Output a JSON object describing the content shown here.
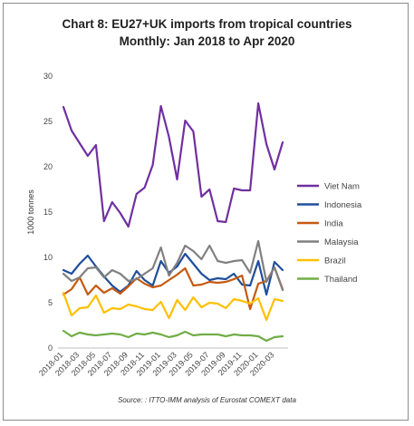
{
  "chart_data": {
    "type": "line",
    "title": "Chart 8: EU27+UK imports from tropical countries",
    "subtitle": "Monthly: Jan 2018 to Apr 2020",
    "ylabel": "1000 tonnes",
    "ylim": [
      0,
      30
    ],
    "yticks": [
      0,
      5,
      10,
      15,
      20,
      25,
      30
    ],
    "grid": false,
    "legend_position": "right",
    "x": [
      "2018-01",
      "2018-02",
      "2018-03",
      "2018-04",
      "2018-05",
      "2018-06",
      "2018-07",
      "2018-08",
      "2018-09",
      "2018-10",
      "2018-11",
      "2018-12",
      "2019-01",
      "2019-02",
      "2019-03",
      "2019-04",
      "2019-05",
      "2019-06",
      "2019-07",
      "2019-08",
      "2019-09",
      "2019-10",
      "2019-11",
      "2019-12",
      "2020-01",
      "2020-02",
      "2020-03",
      "2020-04"
    ],
    "xticks": [
      "2018-01",
      "2018-03",
      "2018-05",
      "2018-07",
      "2018-09",
      "2018-11",
      "2019-01",
      "2019-03",
      "2019-05",
      "2019-07",
      "2019-09",
      "2019-11",
      "2020-01",
      "2020-03"
    ],
    "series": [
      {
        "name": "Viet Nam",
        "color": "#7030a0",
        "values": [
          26.6,
          24.0,
          22.6,
          21.2,
          22.4,
          14.0,
          16.1,
          14.9,
          13.4,
          17.0,
          17.7,
          20.2,
          26.7,
          23.3,
          18.6,
          25.1,
          23.9,
          16.7,
          17.5,
          14.0,
          13.9,
          17.6,
          17.4,
          17.4,
          27.0,
          22.5,
          19.7,
          22.7
        ]
      },
      {
        "name": "Indonesia",
        "color": "#1f4e9a",
        "values": [
          8.6,
          8.2,
          9.3,
          10.2,
          9.0,
          7.9,
          6.9,
          6.2,
          6.9,
          8.5,
          7.5,
          6.9,
          9.6,
          8.3,
          9.0,
          10.4,
          9.3,
          8.2,
          7.5,
          7.7,
          7.6,
          8.2,
          7.0,
          6.9,
          9.6,
          5.9,
          9.5,
          8.6
        ]
      },
      {
        "name": "India",
        "color": "#c55a11",
        "values": [
          5.9,
          6.5,
          7.8,
          5.9,
          6.9,
          6.1,
          6.6,
          6.0,
          6.8,
          7.7,
          7.1,
          6.7,
          6.9,
          7.5,
          8.1,
          8.8,
          6.9,
          7.0,
          7.3,
          7.2,
          7.3,
          7.6,
          8.0,
          4.3,
          7.1,
          7.4,
          8.9,
          6.5
        ]
      },
      {
        "name": "Malaysia",
        "color": "#808080",
        "values": [
          8.2,
          7.4,
          7.8,
          8.8,
          8.9,
          7.8,
          8.6,
          8.2,
          7.4,
          7.6,
          8.2,
          8.8,
          11.1,
          8.0,
          9.4,
          11.3,
          10.7,
          9.8,
          11.3,
          9.6,
          9.4,
          9.6,
          9.7,
          8.3,
          11.8,
          7.3,
          8.9,
          6.4
        ]
      },
      {
        "name": "Brazil",
        "color": "#ffc000",
        "values": [
          6.1,
          3.6,
          4.4,
          4.5,
          5.8,
          3.9,
          4.4,
          4.3,
          4.8,
          4.6,
          4.3,
          4.2,
          5.1,
          3.3,
          5.3,
          4.2,
          5.6,
          4.5,
          5.0,
          4.9,
          4.4,
          5.4,
          5.2,
          4.9,
          5.5,
          3.1,
          5.4,
          5.2
        ]
      },
      {
        "name": "Thailand",
        "color": "#70ad47",
        "values": [
          1.9,
          1.3,
          1.7,
          1.5,
          1.4,
          1.5,
          1.6,
          1.5,
          1.2,
          1.6,
          1.5,
          1.7,
          1.5,
          1.2,
          1.4,
          1.8,
          1.4,
          1.5,
          1.5,
          1.5,
          1.3,
          1.5,
          1.4,
          1.4,
          1.3,
          0.8,
          1.2,
          1.3
        ]
      }
    ],
    "source": "Source: : ITTO-IMM analysis of Eurostat COMEXT data"
  }
}
